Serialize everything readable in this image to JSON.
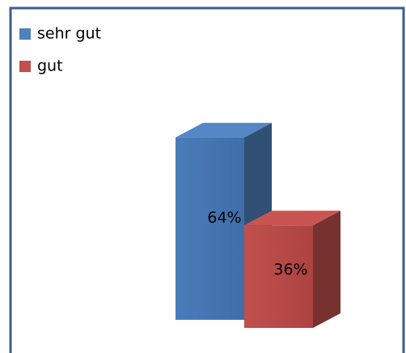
{
  "chart_data": {
    "type": "bar3d",
    "categories": [
      "sehr gut",
      "gut"
    ],
    "values": [
      64,
      36
    ],
    "value_labels": [
      "64%",
      "36%"
    ],
    "colors": [
      "#4f81bd",
      "#c0504d"
    ]
  }
}
